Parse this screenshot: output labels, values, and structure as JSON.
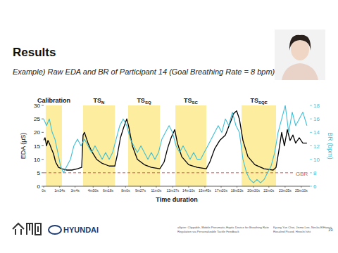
{
  "slide": {
    "title": "Results",
    "subtitle": "Example) Raw EDA and BR of Participant 14 (Goal Breathing Rate = 8 bpm)",
    "brand": "HYUNDAI",
    "footer_title": [
      "aSpire: Clippable, Mobile Pneumatic-Haptic Device for Breathing Rate",
      "Regulation via Personalizable Tactile Feedback"
    ],
    "footer_authors": [
      "Kyung Yun Choi, Jinmo Lee, Neska ElHaouij,",
      "Rosalind Picard, Hiroshi Ishii"
    ],
    "page": 19
  },
  "chart_data": {
    "type": "line",
    "x_label": "Time duration",
    "y_label": "EDA (μS)",
    "y2_label": "BR (bpm)",
    "xlim": [
      0,
      1560
    ],
    "xticks": [
      {
        "value": 0,
        "label": "0s"
      },
      {
        "value": 94,
        "label": "1m34s"
      },
      {
        "value": 184,
        "label": "3m4s"
      },
      {
        "value": 290,
        "label": "4m50s"
      },
      {
        "value": 378,
        "label": "6m18s"
      },
      {
        "value": 480,
        "label": "8m0s"
      },
      {
        "value": 567,
        "label": "9m27s"
      },
      {
        "value": 660,
        "label": "11m0s"
      },
      {
        "value": 757,
        "label": "12m37s"
      },
      {
        "value": 850,
        "label": "14m10s"
      },
      {
        "value": 945,
        "label": "15m45s"
      },
      {
        "value": 1040,
        "label": "17m20s"
      },
      {
        "value": 1133,
        "label": "18m53s"
      },
      {
        "value": 1230,
        "label": "20m30s"
      },
      {
        "value": 1320,
        "label": "22m0s"
      },
      {
        "value": 1415,
        "label": "23m35s"
      },
      {
        "value": 1510,
        "label": "25m10s"
      }
    ],
    "ylim": [
      0,
      30
    ],
    "yticks": [
      0,
      5,
      10,
      15,
      20,
      25,
      30
    ],
    "y2lim": [
      6,
      18
    ],
    "y2ticks": [
      6,
      8,
      10,
      12,
      14,
      16,
      18
    ],
    "grid": false,
    "regions": [
      {
        "label": "Calibration",
        "start": 12,
        "end": 107,
        "color": "#fcee9e"
      },
      {
        "label": "TS",
        "subscript": "N",
        "start": 231,
        "end": 417,
        "color": "#fcee9e"
      },
      {
        "label": "TS",
        "subscript": "SQ",
        "start": 495,
        "end": 681,
        "color": "#fcee9e"
      },
      {
        "label": "TS",
        "subscript": "SC",
        "start": 772,
        "end": 953,
        "color": "#fcee9e"
      },
      {
        "label": "TS",
        "subscript": "SQE",
        "start": 1160,
        "end": 1362,
        "color": "#fcee9e"
      }
    ],
    "reference_lines": [
      {
        "label": "GBR",
        "value": 8,
        "axis": "y2",
        "color": "#e0524f",
        "line_style": "dashed"
      }
    ],
    "series": [
      {
        "color": "#000000",
        "x": [
          0,
          8,
          17,
          25,
          33,
          45,
          58,
          70,
          87,
          107,
          136,
          165,
          198,
          223,
          231,
          239,
          260,
          281,
          310,
          343,
          384,
          417,
          433,
          450,
          470,
          487,
          499,
          520,
          549,
          590,
          631,
          681,
          706,
          726,
          747,
          768,
          784,
          809,
          850,
          900,
          953,
          974,
          1003,
          1032,
          1065,
          1090,
          1114,
          1131,
          1147,
          1168,
          1197,
          1238,
          1292,
          1345,
          1362,
          1378,
          1395,
          1411,
          1428,
          1444,
          1461,
          1477,
          1498,
          1519,
          1543
        ],
        "values": [
          17,
          18,
          15,
          17,
          16,
          14,
          12,
          9,
          7,
          6.5,
          6,
          6,
          6.5,
          7,
          19,
          20,
          16,
          13,
          10,
          8.5,
          7.5,
          7.5,
          12,
          18,
          22,
          25,
          22,
          15,
          10,
          8,
          7,
          6.5,
          9,
          14,
          18,
          21,
          16,
          11,
          8,
          7,
          6.5,
          9,
          14,
          17,
          19,
          23,
          27,
          28,
          25,
          17,
          11,
          8,
          6.5,
          6,
          7,
          13,
          20,
          15,
          21,
          17,
          19,
          16,
          18,
          16,
          16
        ]
      },
      {
        "color": "#3fbfd6",
        "axis": "y2",
        "x": [
          0,
          17,
          33,
          50,
          66,
          83,
          99,
          116,
          136,
          157,
          177,
          198,
          219,
          239,
          260,
          281,
          301,
          322,
          343,
          363,
          384,
          404,
          425,
          446,
          466,
          487,
          508,
          528,
          549,
          570,
          590,
          611,
          631,
          652,
          673,
          693,
          714,
          735,
          755,
          776,
          797,
          817,
          838,
          858,
          879,
          900,
          920,
          941,
          962,
          982,
          1003,
          1023,
          1044,
          1065,
          1085,
          1106,
          1127,
          1147,
          1168,
          1189,
          1209,
          1230,
          1250,
          1271,
          1292,
          1312,
          1333,
          1354,
          1374,
          1395,
          1416,
          1436,
          1457,
          1477,
          1498,
          1519,
          1543
        ],
        "values": [
          16,
          15,
          16,
          14,
          13,
          11,
          9,
          8,
          9,
          10,
          12,
          13,
          12,
          13,
          12,
          11,
          12,
          11,
          10,
          11,
          10,
          11,
          13,
          15,
          16,
          15,
          13,
          12,
          11,
          12,
          11,
          10,
          11,
          10,
          11,
          13,
          14,
          15,
          14,
          12,
          11,
          12,
          11,
          10,
          11,
          10,
          10,
          11,
          12,
          13,
          14,
          15,
          14,
          16,
          15,
          17,
          15,
          14,
          10,
          8,
          7,
          6.5,
          7,
          6.5,
          7,
          8,
          9,
          11,
          14,
          16,
          18,
          14,
          17,
          15,
          16,
          17,
          15
        ]
      }
    ]
  }
}
